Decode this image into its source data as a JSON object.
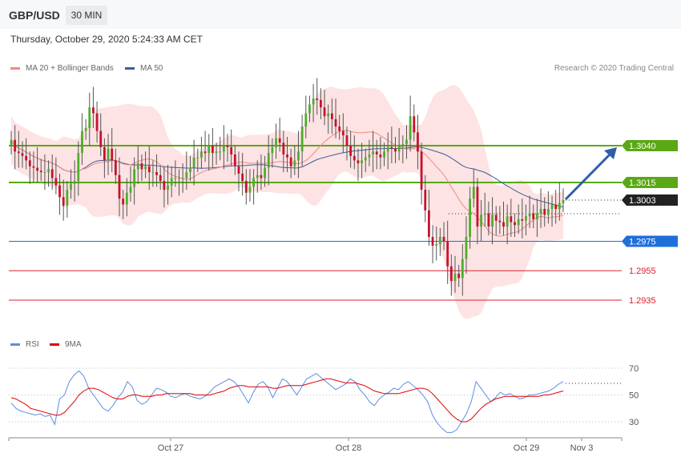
{
  "header": {
    "pair": "GBP/USD",
    "timeframe": "30 MIN",
    "datetime": "Thursday, October 29, 2020 5:24:33 AM CET",
    "credit": "Research © 2020 Trading Central"
  },
  "legend_top": [
    {
      "label": "MA 20 + Bollinger Bands",
      "color": "#f08a84"
    },
    {
      "label": "MA 50",
      "color": "#3a5f9a"
    }
  ],
  "legend_rsi": [
    {
      "label": "RSI",
      "color": "#5b8ee0"
    },
    {
      "label": "9MA",
      "color": "#e00000"
    }
  ],
  "colors": {
    "bull": "#4caf2a",
    "bear": "#c8102e",
    "green_level": "#5aa815",
    "blue_level": "#1e6fd9",
    "red_level": "#d9242f",
    "current": "#222222",
    "band_fill": "#fde3e3"
  },
  "chart_data": [
    {
      "type": "candlestick",
      "title": "",
      "x_tick_labels": [
        "Oct 27",
        "Oct 28",
        "Oct 29",
        "Nov 3"
      ],
      "ylim": [
        1.2905,
        1.3085
      ],
      "levels": [
        {
          "value": 1.304,
          "label": "1.3040",
          "kind": "resistance"
        },
        {
          "value": 1.3015,
          "label": "1.3015",
          "kind": "resistance"
        },
        {
          "value": 1.3003,
          "label": "1.3003",
          "kind": "current"
        },
        {
          "value": 1.2975,
          "label": "1.2975",
          "kind": "pivot"
        },
        {
          "value": 1.2955,
          "label": "1.2955",
          "kind": "support"
        },
        {
          "value": 1.2935,
          "label": "1.2935",
          "kind": "support"
        }
      ],
      "arrow": {
        "from": 1.3003,
        "to": 1.304,
        "direction": "up"
      },
      "closes": [
        1.3044,
        1.3036,
        1.3035,
        1.3033,
        1.303,
        1.3026,
        1.3025,
        1.3023,
        1.3022,
        1.3022,
        1.3024,
        1.3018,
        1.3013,
        1.3005,
        1.2999,
        1.301,
        1.3014,
        1.3016,
        1.3035,
        1.305,
        1.3052,
        1.3066,
        1.3062,
        1.305,
        1.3039,
        1.303,
        1.3038,
        1.303,
        1.302,
        1.3004,
        1.3,
        1.3008,
        1.3012,
        1.3024,
        1.3028,
        1.3024,
        1.3026,
        1.3022,
        1.3022,
        1.302,
        1.3016,
        1.301,
        1.3013,
        1.3018,
        1.3018,
        1.3018,
        1.3018,
        1.3022,
        1.3025,
        1.3032,
        1.3032,
        1.3036,
        1.3035,
        1.304,
        1.3035,
        1.3036,
        1.3036,
        1.304,
        1.3039,
        1.3034,
        1.3026,
        1.3021,
        1.3016,
        1.3008,
        1.3012,
        1.3018,
        1.302,
        1.3018,
        1.3025,
        1.3035,
        1.3039,
        1.3045,
        1.3042,
        1.3034,
        1.3032,
        1.3026,
        1.303,
        1.3036,
        1.3053,
        1.3062,
        1.3068,
        1.3072,
        1.3071,
        1.3066,
        1.306,
        1.3062,
        1.3058,
        1.3053,
        1.305,
        1.3047,
        1.304,
        1.3033,
        1.303,
        1.3028,
        1.303,
        1.3032,
        1.3034,
        1.3036,
        1.3034,
        1.3032,
        1.3036,
        1.3039,
        1.3038,
        1.3036,
        1.304,
        1.3041,
        1.3044,
        1.306,
        1.3049,
        1.3036,
        1.301,
        1.2996,
        1.2978,
        1.2972,
        1.2973,
        1.2978,
        1.2975,
        1.2958,
        1.2948,
        1.2953,
        1.295,
        1.2963,
        1.2978,
        1.3004,
        1.3012,
        1.2985,
        1.2993,
        1.2994,
        1.2985,
        1.2993,
        1.2989,
        1.2988,
        1.2985,
        1.2992,
        1.2988,
        1.2986,
        1.299,
        1.2989,
        1.2992,
        1.2994,
        1.299,
        1.2994,
        1.2997,
        1.2993,
        1.2997,
        1.3,
        1.2997,
        1.3001,
        1.3003
      ]
    },
    {
      "type": "line",
      "title": "RSI",
      "ylim": [
        20,
        80
      ],
      "y_ticks": [
        70,
        50,
        30
      ],
      "series": [
        {
          "name": "RSI",
          "values": [
            44,
            40,
            38,
            37,
            36,
            35,
            36,
            34,
            35,
            28,
            47,
            50,
            60,
            65,
            68,
            64,
            55,
            50,
            45,
            40,
            38,
            42,
            48,
            52,
            60,
            56,
            46,
            43,
            45,
            50,
            55,
            54,
            52,
            49,
            48,
            50,
            51,
            49,
            48,
            47,
            49,
            52,
            56,
            58,
            60,
            62,
            60,
            56,
            50,
            44,
            52,
            58,
            60,
            56,
            48,
            55,
            62,
            60,
            55,
            50,
            56,
            62,
            64,
            66,
            63,
            60,
            57,
            54,
            56,
            58,
            62,
            60,
            54,
            50,
            45,
            42,
            47,
            50,
            52,
            55,
            54,
            58,
            60,
            57,
            54,
            50,
            45,
            35,
            29,
            25,
            22,
            22,
            24,
            30,
            36,
            45,
            60,
            55,
            50,
            45,
            48,
            52,
            50,
            51,
            49,
            47,
            48,
            50,
            50,
            51,
            52,
            53,
            55,
            58,
            60
          ]
        },
        {
          "name": "9MA",
          "values": [
            48,
            47,
            45,
            43,
            40,
            39,
            38,
            37,
            36,
            35,
            35,
            37,
            41,
            45,
            50,
            53,
            55,
            55,
            54,
            52,
            50,
            48,
            47,
            47,
            49,
            50,
            50,
            49,
            49,
            49,
            50,
            50,
            51,
            51,
            51,
            51,
            51,
            51,
            50,
            50,
            50,
            50,
            51,
            52,
            53,
            55,
            56,
            57,
            57,
            56,
            56,
            56,
            56,
            56,
            55,
            55,
            56,
            57,
            57,
            57,
            57,
            58,
            59,
            60,
            61,
            62,
            62,
            61,
            60,
            59,
            59,
            59,
            58,
            57,
            55,
            53,
            52,
            51,
            51,
            51,
            51,
            52,
            53,
            54,
            55,
            55,
            54,
            51,
            47,
            43,
            39,
            35,
            32,
            30,
            30,
            32,
            36,
            40,
            43,
            45,
            47,
            48,
            49,
            49,
            49,
            49,
            49,
            49,
            49,
            49,
            50,
            50,
            51,
            52,
            53
          ]
        }
      ]
    }
  ]
}
